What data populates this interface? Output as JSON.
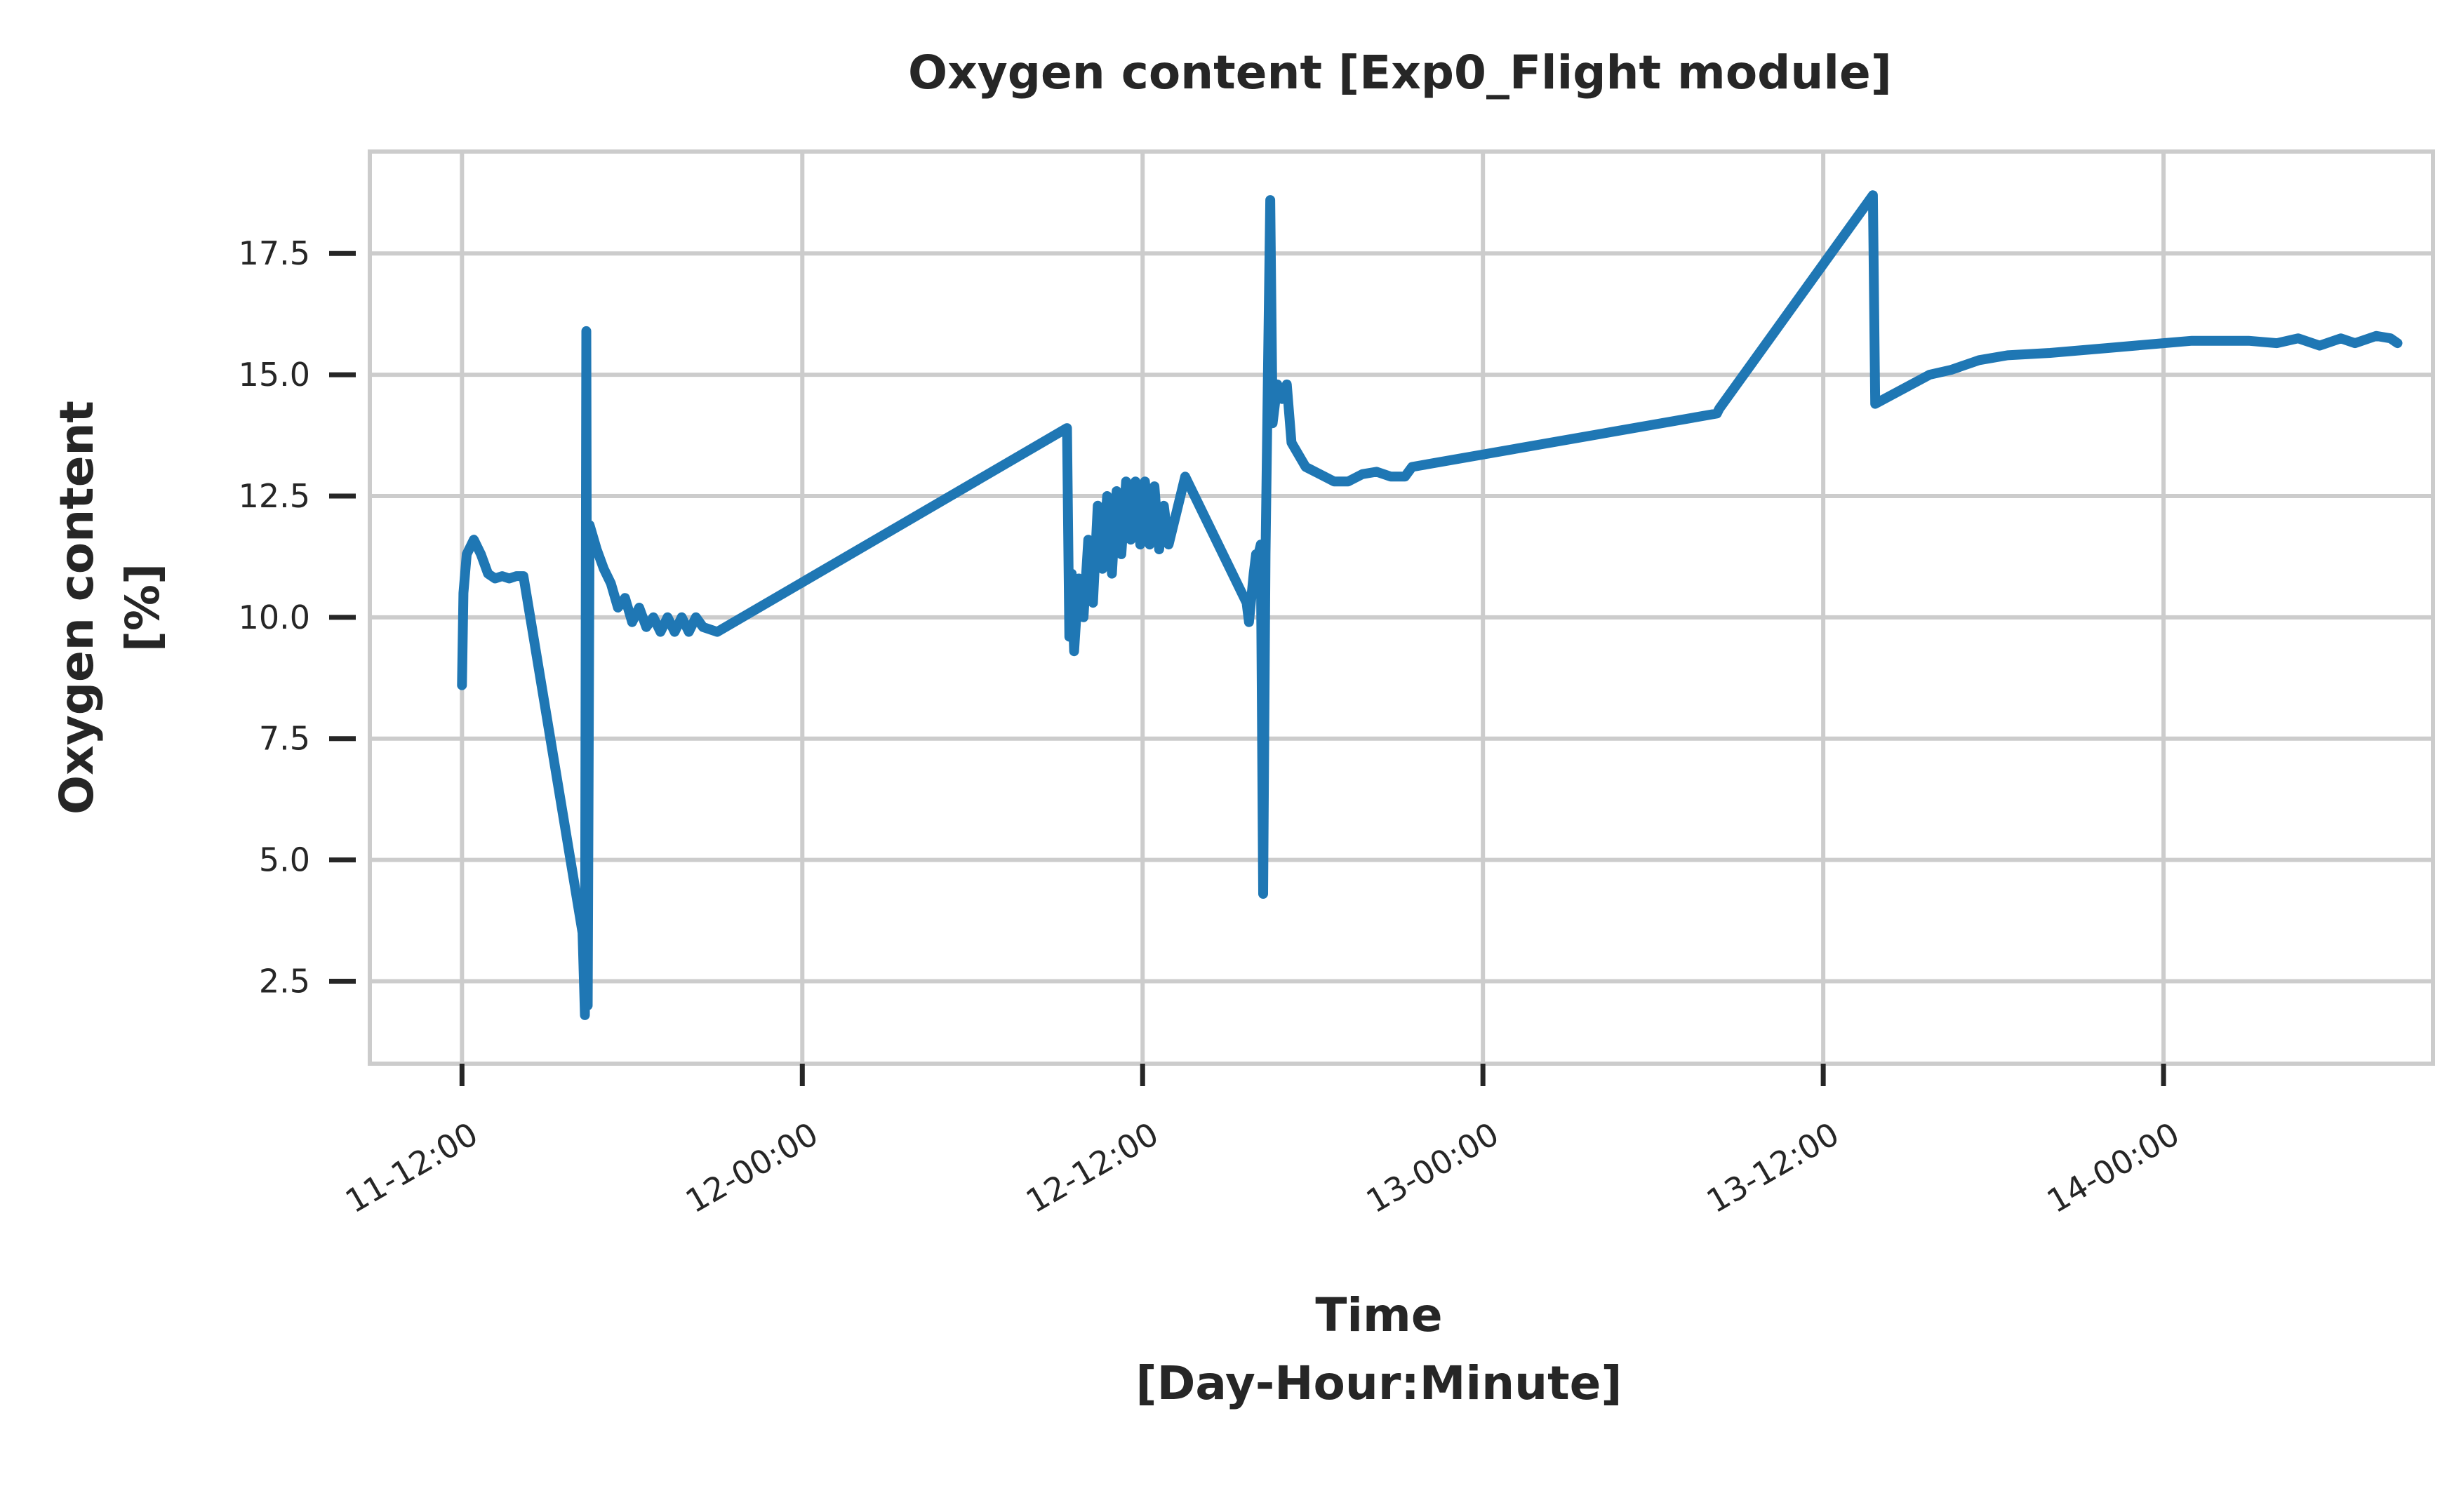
{
  "chart_data": {
    "type": "line",
    "title": "Oxygen content [Exp0_Flight module]",
    "xlabel_lines": [
      "Time",
      "[Day-Hour:Minute]"
    ],
    "ylabel_lines": [
      "Oxygen content",
      "[%]"
    ],
    "x_ticks": [
      "11-12:00",
      "12-00:00",
      "12-12:00",
      "13-00:00",
      "13-12:00",
      "14-00:00"
    ],
    "y_ticks": [
      "2.5",
      "5.0",
      "7.5",
      "10.0",
      "12.5",
      "15.0",
      "17.5"
    ],
    "x_range": [
      "11-08:45",
      "14-09:30"
    ],
    "ylim": [
      0.8,
      19.6
    ],
    "grid": true,
    "series": [
      {
        "color": "#1f77b4",
        "points": [
          [
            "11-12:00",
            8.6
          ],
          [
            "11-12:03",
            10.5
          ],
          [
            "11-12:10",
            11.3
          ],
          [
            "11-12:25",
            11.6
          ],
          [
            "11-12:40",
            11.3
          ],
          [
            "11-12:55",
            10.9
          ],
          [
            "11-13:10",
            10.8
          ],
          [
            "11-13:25",
            10.85
          ],
          [
            "11-13:40",
            10.8
          ],
          [
            "11-13:55",
            10.85
          ],
          [
            "11-14:10",
            10.85
          ],
          [
            "11-16:15",
            3.5
          ],
          [
            "11-16:20",
            1.8
          ],
          [
            "11-16:23",
            15.9
          ],
          [
            "11-16:26",
            2.0
          ],
          [
            "11-16:30",
            11.9
          ],
          [
            "11-16:45",
            11.4
          ],
          [
            "11-17:00",
            11.0
          ],
          [
            "11-17:15",
            10.7
          ],
          [
            "11-17:30",
            10.2
          ],
          [
            "11-17:45",
            10.4
          ],
          [
            "11-18:00",
            9.9
          ],
          [
            "11-18:15",
            10.2
          ],
          [
            "11-18:30",
            9.8
          ],
          [
            "11-18:45",
            10.0
          ],
          [
            "11-19:00",
            9.7
          ],
          [
            "11-19:15",
            10.0
          ],
          [
            "11-19:30",
            9.7
          ],
          [
            "11-19:45",
            10.0
          ],
          [
            "11-20:00",
            9.7
          ],
          [
            "11-20:15",
            10.0
          ],
          [
            "11-20:30",
            9.8
          ],
          [
            "11-21:00",
            9.7
          ],
          [
            "12-09:20",
            13.9
          ],
          [
            "12-09:25",
            9.6
          ],
          [
            "12-09:30",
            10.9
          ],
          [
            "12-09:35",
            9.3
          ],
          [
            "12-09:45",
            10.8
          ],
          [
            "12-09:55",
            10.0
          ],
          [
            "12-10:05",
            11.6
          ],
          [
            "12-10:15",
            10.3
          ],
          [
            "12-10:25",
            12.3
          ],
          [
            "12-10:35",
            11.0
          ],
          [
            "12-10:45",
            12.5
          ],
          [
            "12-10:55",
            10.9
          ],
          [
            "12-11:05",
            12.6
          ],
          [
            "12-11:15",
            11.3
          ],
          [
            "12-11:25",
            12.8
          ],
          [
            "12-11:35",
            11.6
          ],
          [
            "12-11:45",
            12.8
          ],
          [
            "12-11:55",
            11.5
          ],
          [
            "12-12:05",
            12.8
          ],
          [
            "12-12:15",
            11.5
          ],
          [
            "12-12:25",
            12.7
          ],
          [
            "12-12:35",
            11.4
          ],
          [
            "12-12:45",
            12.3
          ],
          [
            "12-12:55",
            11.5
          ],
          [
            "12-13:15",
            12.3
          ],
          [
            "12-13:30",
            12.9
          ],
          [
            "12-15:40",
            10.3
          ],
          [
            "12-15:45",
            9.9
          ],
          [
            "12-15:55",
            10.9
          ],
          [
            "12-16:00",
            11.3
          ],
          [
            "12-16:05",
            11.3
          ],
          [
            "12-16:10",
            11.5
          ],
          [
            "12-16:15",
            4.3
          ],
          [
            "12-16:20",
            11.3
          ],
          [
            "12-16:30",
            18.6
          ],
          [
            "12-16:35",
            14.0
          ],
          [
            "12-16:45",
            14.8
          ],
          [
            "12-16:55",
            14.5
          ],
          [
            "12-17:05",
            14.8
          ],
          [
            "12-17:15",
            13.6
          ],
          [
            "12-17:45",
            13.1
          ],
          [
            "12-18:15",
            12.95
          ],
          [
            "12-18:45",
            12.8
          ],
          [
            "12-19:15",
            12.8
          ],
          [
            "12-19:45",
            12.95
          ],
          [
            "12-20:15",
            13.0
          ],
          [
            "12-20:45",
            12.9
          ],
          [
            "12-21:15",
            12.9
          ],
          [
            "12-21:30",
            13.1
          ],
          [
            "13-08:15",
            14.2
          ],
          [
            "13-08:20",
            14.3
          ],
          [
            "13-13:45",
            18.7
          ],
          [
            "13-13:50",
            14.4
          ],
          [
            "13-15:45",
            15.0
          ],
          [
            "13-16:30",
            15.1
          ],
          [
            "13-17:30",
            15.3
          ],
          [
            "13-18:30",
            15.4
          ],
          [
            "13-20:00",
            15.45
          ],
          [
            "13-22:00",
            15.55
          ],
          [
            "14-00:00",
            15.65
          ],
          [
            "14-01:00",
            15.7
          ],
          [
            "14-03:00",
            15.7
          ],
          [
            "14-04:00",
            15.65
          ],
          [
            "14-04:45",
            15.75
          ],
          [
            "14-05:30",
            15.6
          ],
          [
            "14-06:15",
            15.75
          ],
          [
            "14-06:45",
            15.65
          ],
          [
            "14-07:30",
            15.8
          ],
          [
            "14-08:00",
            15.75
          ],
          [
            "14-08:15",
            15.65
          ]
        ]
      }
    ]
  }
}
